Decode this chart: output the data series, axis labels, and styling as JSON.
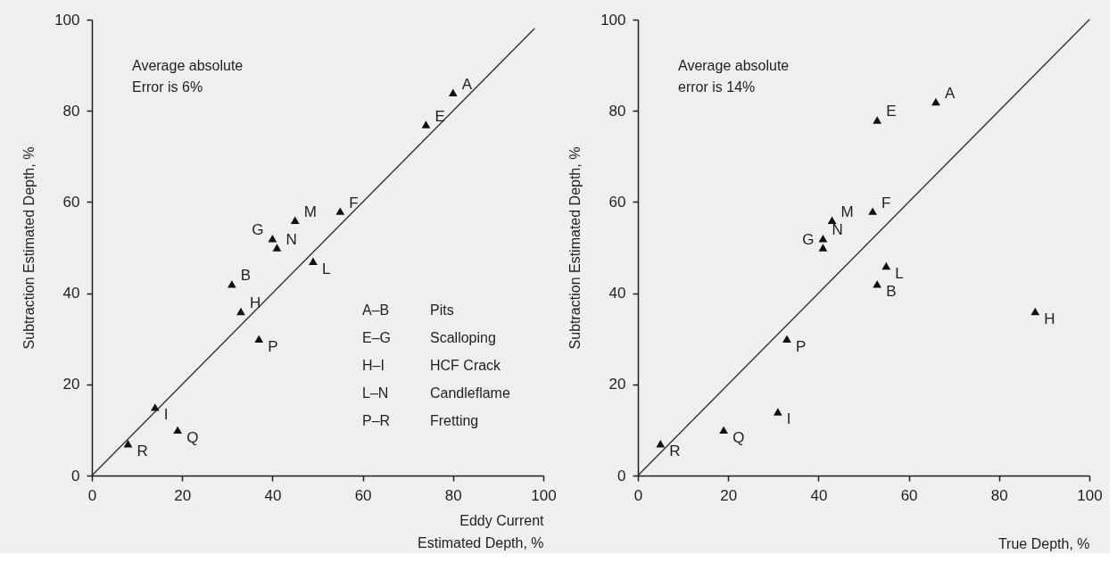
{
  "chart_data": [
    {
      "type": "scatter",
      "xlabel": "Eddy Current\nEstimated Depth, %",
      "ylabel": "Subtraction Estimated Depth, %",
      "xlim": [
        0,
        100
      ],
      "ylim": [
        0,
        100
      ],
      "xticks": [
        0,
        20,
        40,
        60,
        80,
        100
      ],
      "yticks": [
        0,
        20,
        40,
        60,
        80,
        100
      ],
      "grid": false,
      "series": [
        {
          "type": "line",
          "color": "#333333",
          "line_style": "solid",
          "x": [
            0,
            98
          ],
          "values": [
            0,
            98
          ]
        },
        {
          "marker": "triangle",
          "color": "#111111",
          "x": [
            80,
            31,
            74,
            55,
            40,
            33,
            14,
            49,
            45,
            41,
            37,
            19,
            8
          ],
          "values": [
            84,
            42,
            77,
            58,
            52,
            36,
            15,
            47,
            56,
            50,
            30,
            10,
            7
          ],
          "value_labels": [
            "A",
            "B",
            "E",
            "F",
            "G",
            "H",
            "I",
            "L",
            "M",
            "N",
            "P",
            "Q",
            "R"
          ]
        }
      ],
      "annotations": [
        "Average absolute\nError is 6%",
        "A–B",
        "Pits",
        "E–G",
        "Scalloping",
        "H–I",
        "HCF Crack",
        "L–N",
        "Candleflame",
        "P–R",
        "Fretting"
      ]
    },
    {
      "type": "scatter",
      "xlabel": "True Depth, %",
      "ylabel": "Subtraction Estimated Depth, %",
      "xlim": [
        0,
        100
      ],
      "ylim": [
        0,
        100
      ],
      "xticks": [
        0,
        20,
        40,
        60,
        80,
        100
      ],
      "yticks": [
        0,
        20,
        40,
        60,
        80,
        100
      ],
      "grid": false,
      "series": [
        {
          "type": "line",
          "color": "#333333",
          "line_style": "solid",
          "x": [
            0,
            100
          ],
          "values": [
            0,
            100
          ]
        },
        {
          "marker": "triangle",
          "color": "#111111",
          "x": [
            66,
            53,
            53,
            52,
            41,
            88,
            31,
            55,
            43,
            41,
            33,
            19,
            5
          ],
          "values": [
            82,
            42,
            78,
            58,
            50,
            36,
            14,
            46,
            56,
            52,
            30,
            10,
            7
          ],
          "value_labels": [
            "A",
            "B",
            "E",
            "F",
            "G",
            "H",
            "I",
            "L",
            "M",
            "N",
            "P",
            "Q",
            "R"
          ]
        }
      ],
      "annotations": [
        "Average absolute\nerror is 14%"
      ]
    }
  ]
}
